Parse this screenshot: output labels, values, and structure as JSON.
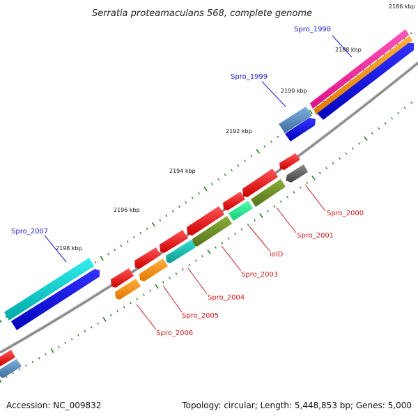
{
  "title": "Serratia proteamaculans 568, complete genome",
  "accession": "Accession: NC_009832",
  "summary": "Topology: circular; Length: 5,448,853 bp; Genes: 5,000",
  "colors": {
    "background": "#ffffff",
    "backbone": "#8c8c8c",
    "tick": "#1f7a1f",
    "label_forward": "#1a1acc",
    "label_reverse": "#cc1a1a"
  },
  "ticks": [
    "2186 kbp",
    "2188 kbp",
    "2190 kbp",
    "2192 kbp",
    "2194 kbp",
    "2196 kbp",
    "2198 kbp"
  ],
  "genes": [
    {
      "label": "Spro_1998",
      "strand": "forward",
      "color": "#0000ee"
    },
    {
      "label": "Spro_1999",
      "strand": "forward",
      "color": "#4682b4"
    },
    {
      "label": "Spro_2000",
      "strand": "reverse",
      "color": "#666666"
    },
    {
      "label": "Spro_2001",
      "strand": "reverse",
      "color": "#6b8e23"
    },
    {
      "label": "iolD",
      "strand": "reverse",
      "color": "#6b8e23"
    },
    {
      "label": "Spro_2003",
      "strand": "reverse",
      "color": "#6b8e23"
    },
    {
      "label": "Spro_2004",
      "strand": "reverse",
      "color": "#20b2aa"
    },
    {
      "label": "Spro_2005",
      "strand": "reverse",
      "color": "#ff8c00"
    },
    {
      "label": "Spro_2006",
      "strand": "reverse",
      "color": "#ff8c00"
    },
    {
      "label": "Spro_2007",
      "strand": "forward",
      "color": "#00ced1"
    }
  ]
}
